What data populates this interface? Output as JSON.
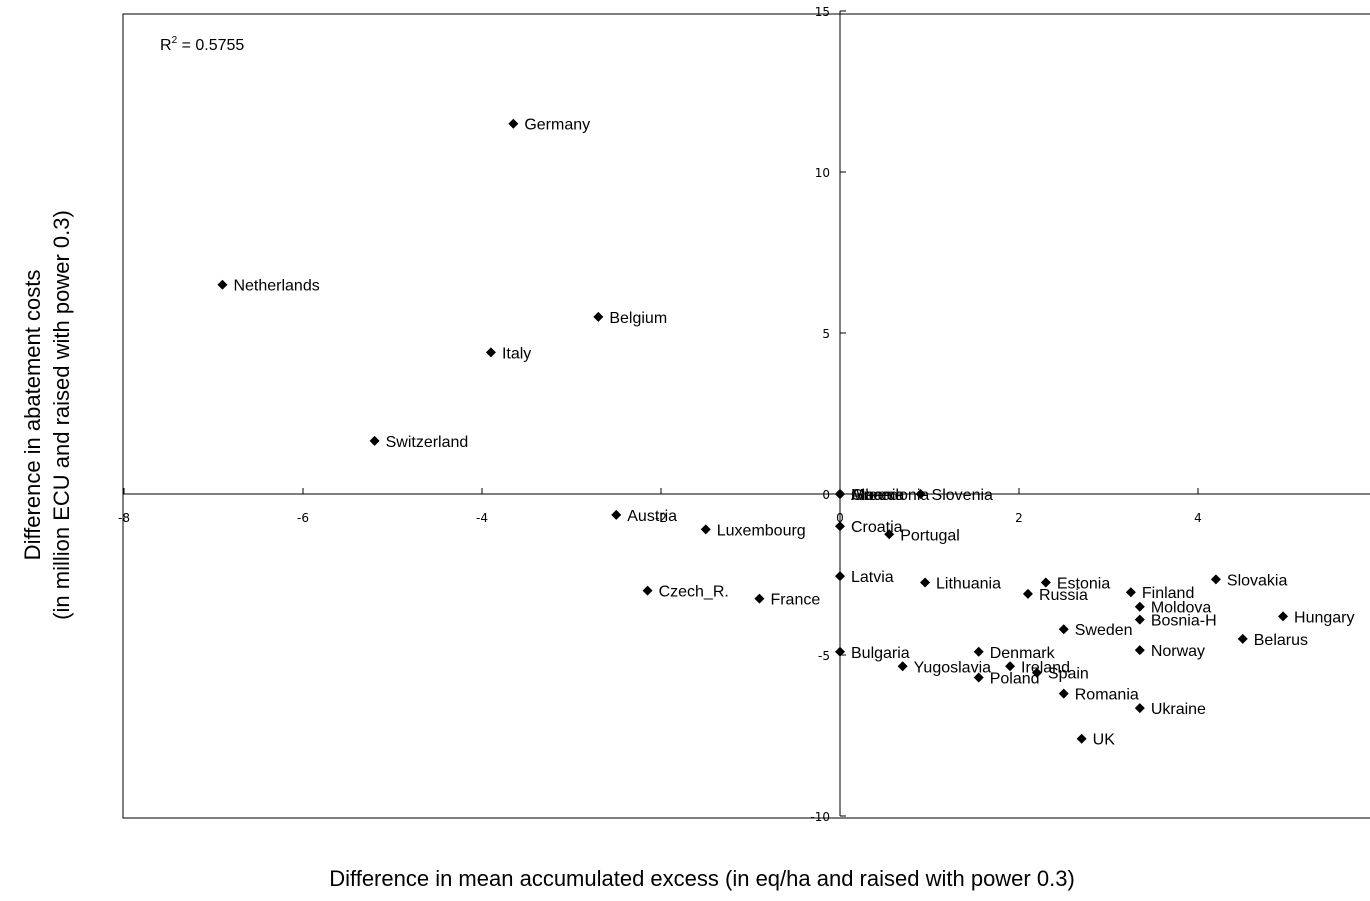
{
  "chart_data": {
    "type": "scatter",
    "title": "",
    "xlabel": "Difference in mean accumulated excess (in eq/ha and raised with power 0.3)",
    "ylabel_line1": "Difference in abatement costs",
    "ylabel_line2": "(in million ECU and raised with power 0.3)",
    "xlim": [
      -8,
      6
    ],
    "ylim": [
      -10,
      15
    ],
    "x_ticks": [
      -8,
      -6,
      -4,
      -2,
      0,
      2,
      4
    ],
    "y_ticks": [
      -10,
      -5,
      0,
      5,
      10,
      15
    ],
    "grid": false,
    "legend": "none",
    "annotation": {
      "prefix": "R",
      "superscript": "2",
      "text": " = 0.5755"
    },
    "marker": "diamond",
    "color": "#000000",
    "points": [
      {
        "label": "Germany",
        "x": -3.65,
        "y": 11.5
      },
      {
        "label": "Netherlands",
        "x": -6.9,
        "y": 6.5
      },
      {
        "label": "Belgium",
        "x": -2.7,
        "y": 5.5
      },
      {
        "label": "Italy",
        "x": -3.9,
        "y": 4.4
      },
      {
        "label": "Switzerland",
        "x": -5.2,
        "y": 1.65
      },
      {
        "label": "Austria",
        "x": -2.5,
        "y": -0.65
      },
      {
        "label": "Luxembourg",
        "x": -1.5,
        "y": -1.1
      },
      {
        "label": "Czech_R.",
        "x": -2.15,
        "y": -3.0
      },
      {
        "label": "France",
        "x": -0.9,
        "y": -3.25
      },
      {
        "label": "Albania",
        "x": 0.0,
        "y": 0.0
      },
      {
        "label": "Greece",
        "x": 0.0,
        "y": 0.0
      },
      {
        "label": "Macedonia",
        "x": 0.0,
        "y": 0.0
      },
      {
        "label": "Slovenia",
        "x": 0.9,
        "y": 0.0
      },
      {
        "label": "Croatia",
        "x": 0.0,
        "y": -1.0
      },
      {
        "label": "Portugal",
        "x": 0.55,
        "y": -1.25
      },
      {
        "label": "Latvia",
        "x": 0.0,
        "y": -2.55
      },
      {
        "label": "Lithuania",
        "x": 0.95,
        "y": -2.75
      },
      {
        "label": "Estonia",
        "x": 2.3,
        "y": -2.75
      },
      {
        "label": "Russia",
        "x": 2.1,
        "y": -3.1
      },
      {
        "label": "Finland",
        "x": 3.25,
        "y": -3.05
      },
      {
        "label": "Slovakia",
        "x": 4.2,
        "y": -2.65
      },
      {
        "label": "Moldova",
        "x": 3.35,
        "y": -3.5
      },
      {
        "label": "Bosnia-H",
        "x": 3.35,
        "y": -3.9
      },
      {
        "label": "Hungary",
        "x": 4.95,
        "y": -3.8
      },
      {
        "label": "Sweden",
        "x": 2.5,
        "y": -4.2
      },
      {
        "label": "Belarus",
        "x": 4.5,
        "y": -4.5
      },
      {
        "label": "Bulgaria",
        "x": 0.0,
        "y": -4.9
      },
      {
        "label": "Denmark",
        "x": 1.55,
        "y": -4.9
      },
      {
        "label": "Norway",
        "x": 3.35,
        "y": -4.85
      },
      {
        "label": "Yugoslavia",
        "x": 0.7,
        "y": -5.35
      },
      {
        "label": "Ireland",
        "x": 1.9,
        "y": -5.35
      },
      {
        "label": "Spain",
        "x": 2.2,
        "y": -5.55
      },
      {
        "label": "Poland",
        "x": 1.55,
        "y": -5.7
      },
      {
        "label": "Romania",
        "x": 2.5,
        "y": -6.2
      },
      {
        "label": "Ukraine",
        "x": 3.35,
        "y": -6.65
      },
      {
        "label": "UK",
        "x": 2.7,
        "y": -7.6
      }
    ]
  }
}
